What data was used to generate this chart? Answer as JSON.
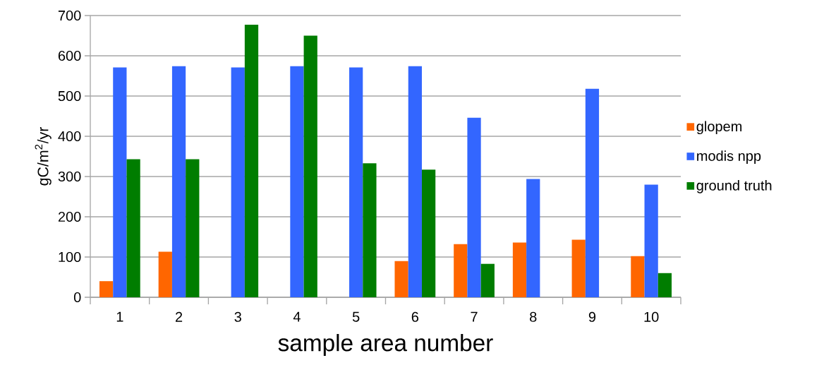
{
  "chart_data": {
    "type": "bar",
    "xlabel": "sample area number",
    "ylabel": "gC/m$^{2}$/yr",
    "categories": [
      "1",
      "2",
      "3",
      "4",
      "5",
      "6",
      "7",
      "8",
      "9",
      "10"
    ],
    "series": [
      {
        "name": "glopem",
        "color": "#ff6600",
        "values": [
          40,
          113,
          null,
          null,
          null,
          90,
          132,
          136,
          143,
          102
        ]
      },
      {
        "name": "modis npp",
        "color": "#3366ff",
        "values": [
          571,
          574,
          571,
          574,
          571,
          574,
          446,
          294,
          518,
          280
        ]
      },
      {
        "name": "ground truth",
        "color": "#007d00",
        "values": [
          343,
          343,
          677,
          650,
          333,
          317,
          83,
          null,
          null,
          60
        ]
      }
    ],
    "ylim": [
      0,
      700
    ],
    "yticks": [
      0,
      100,
      200,
      300,
      400,
      500,
      600,
      700
    ],
    "grid": "y",
    "legend": "right"
  }
}
